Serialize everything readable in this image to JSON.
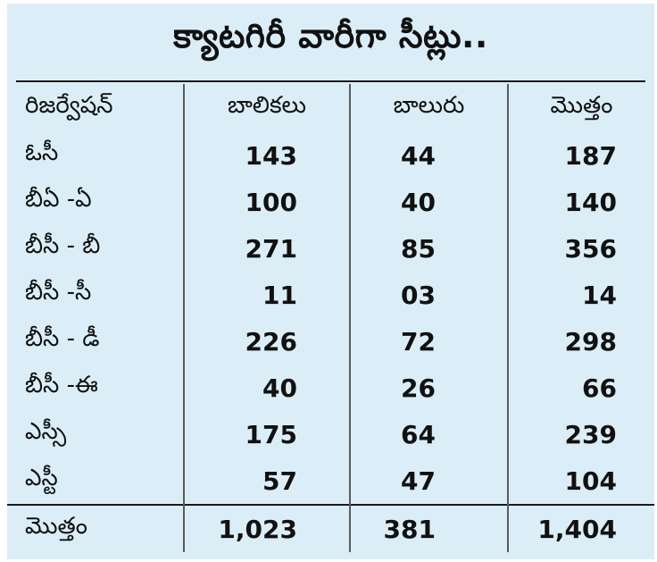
{
  "title": "క్యాటగిరీ వారీగా సీట్లు..",
  "headers": [
    "రిజర్వేషన్",
    "బాలికలు",
    "బాలురు",
    "మొత్తం"
  ],
  "rows": [
    {
      "category": "ఓసీ",
      "girls": "143",
      "boys": "44",
      "total": "187"
    },
    {
      "category": "బీఏ -ఏ",
      "girls": "100",
      "boys": "40",
      "total": "140"
    },
    {
      "category": "బీసీ - బీ",
      "girls": "271",
      "boys": "85",
      "total": "356"
    },
    {
      "category": "బీసీ -సీ",
      "girls": "11",
      "boys": "03",
      "total": "14"
    },
    {
      "category": "బీసీ - డీ",
      "girls": "226",
      "boys": "72",
      "total": "298"
    },
    {
      "category": "బీసీ -ఈ",
      "girls": "40",
      "boys": "26",
      "total": "66"
    },
    {
      "category": "ఎస్సీ",
      "girls": "175",
      "boys": "64",
      "total": "239"
    },
    {
      "category": "ఎస్టీ",
      "girls": "57",
      "boys": "47",
      "total": "104"
    }
  ],
  "total_row": {
    "category": "మొత్తం",
    "girls": "1,023",
    "boys": "381",
    "total": "1,404"
  }
}
